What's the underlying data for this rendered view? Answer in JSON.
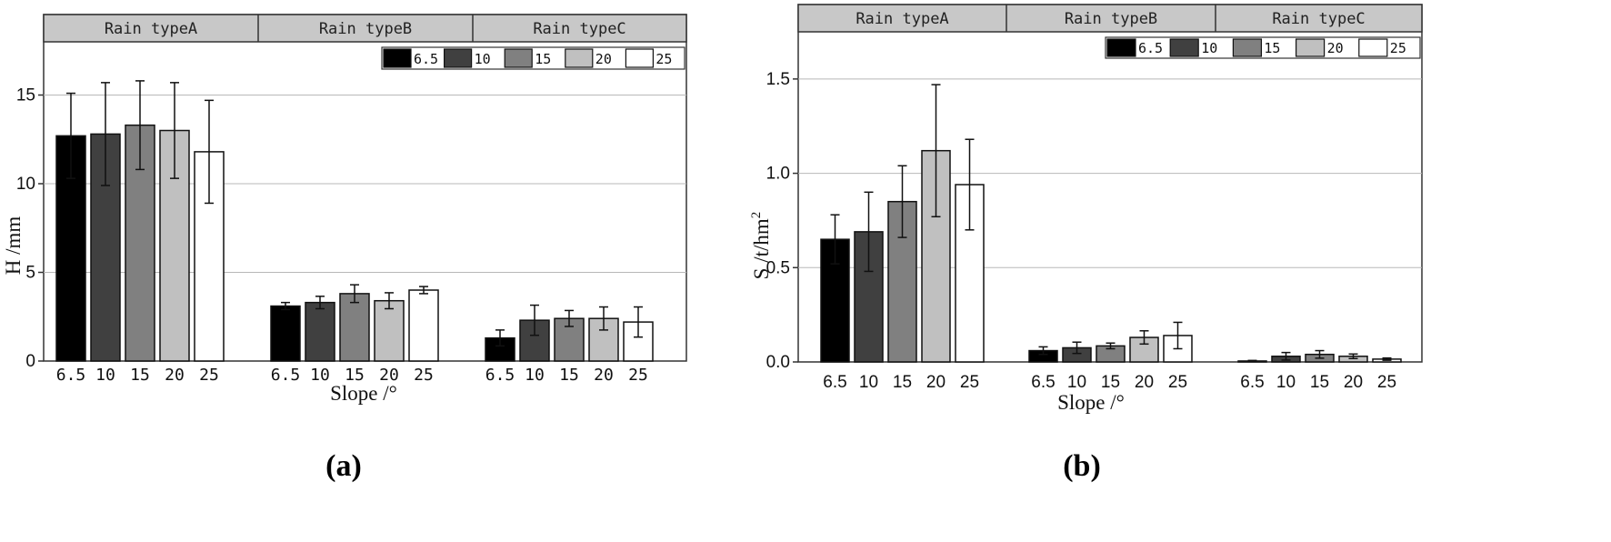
{
  "chart_data": [
    {
      "type": "bar",
      "panel_label": "(a)",
      "facets": [
        "Rain typeA",
        "Rain typeB",
        "Rain typeC"
      ],
      "categories": [
        "6.5",
        "10",
        "15",
        "20",
        "25"
      ],
      "legend": [
        "6.5",
        "10",
        "15",
        "20",
        "25"
      ],
      "ylabel": "H /mm",
      "xlabel": "Slope /°",
      "ylim": [
        0,
        18
      ],
      "yticks": [
        "0",
        "5",
        "10",
        "15"
      ],
      "series_by_facet": [
        {
          "facet": "Rain typeA",
          "values": [
            12.7,
            12.8,
            13.3,
            13.0,
            11.8
          ],
          "errors": [
            2.4,
            2.9,
            2.5,
            2.7,
            2.9
          ]
        },
        {
          "facet": "Rain typeB",
          "values": [
            3.1,
            3.3,
            3.8,
            3.4,
            4.0
          ],
          "errors": [
            0.2,
            0.35,
            0.5,
            0.45,
            0.2
          ]
        },
        {
          "facet": "Rain typeC",
          "values": [
            1.3,
            2.3,
            2.4,
            2.4,
            2.2
          ],
          "errors": [
            0.45,
            0.85,
            0.45,
            0.65,
            0.85
          ]
        }
      ],
      "colors": [
        "#000000",
        "#404040",
        "#808080",
        "#c0c0c0",
        "#ffffff"
      ],
      "grid": true
    },
    {
      "type": "bar",
      "panel_label": "(b)",
      "facets": [
        "Rain typeA",
        "Rain typeB",
        "Rain typeC"
      ],
      "categories": [
        "6.5",
        "10",
        "15",
        "20",
        "25"
      ],
      "legend": [
        "6.5",
        "10",
        "15",
        "20",
        "25"
      ],
      "ylabel": "S /t/hm",
      "ylabel_sup": "2",
      "xlabel": "Slope /°",
      "ylim": [
        0,
        1.75
      ],
      "yticks": [
        "0.0",
        "0.5",
        "1.0",
        "1.5"
      ],
      "series_by_facet": [
        {
          "facet": "Rain typeA",
          "values": [
            0.65,
            0.69,
            0.85,
            1.12,
            0.94
          ],
          "errors": [
            0.13,
            0.21,
            0.19,
            0.35,
            0.24
          ]
        },
        {
          "facet": "Rain typeB",
          "values": [
            0.06,
            0.075,
            0.085,
            0.13,
            0.14
          ],
          "errors": [
            0.02,
            0.03,
            0.015,
            0.035,
            0.07
          ]
        },
        {
          "facet": "Rain typeC",
          "values": [
            0.005,
            0.03,
            0.04,
            0.03,
            0.015
          ],
          "errors": [
            0.003,
            0.02,
            0.02,
            0.012,
            0.006
          ]
        }
      ],
      "colors": [
        "#000000",
        "#404040",
        "#808080",
        "#c0c0c0",
        "#ffffff"
      ],
      "grid": true
    }
  ]
}
